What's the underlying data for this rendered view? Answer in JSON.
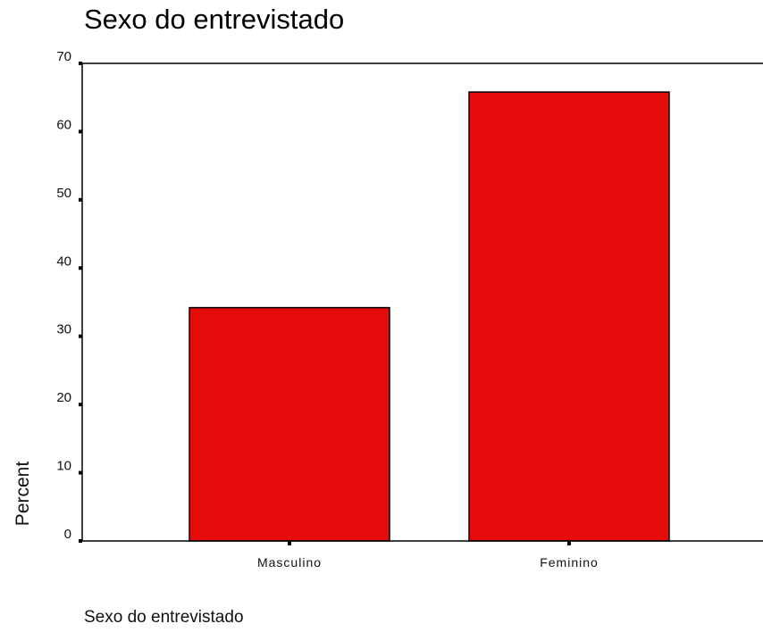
{
  "chart_data": {
    "type": "bar",
    "title": "Sexo do entrevistado",
    "xlabel": "Sexo do entrevistado",
    "ylabel": "Percent",
    "categories": [
      "Masculino",
      "Feminino"
    ],
    "values": [
      34.2,
      65.8
    ],
    "ylim": [
      0,
      70
    ],
    "yticks": [
      0,
      10,
      20,
      30,
      40,
      50,
      60,
      70
    ],
    "grid": false,
    "bar_color": "#e60b0b"
  }
}
